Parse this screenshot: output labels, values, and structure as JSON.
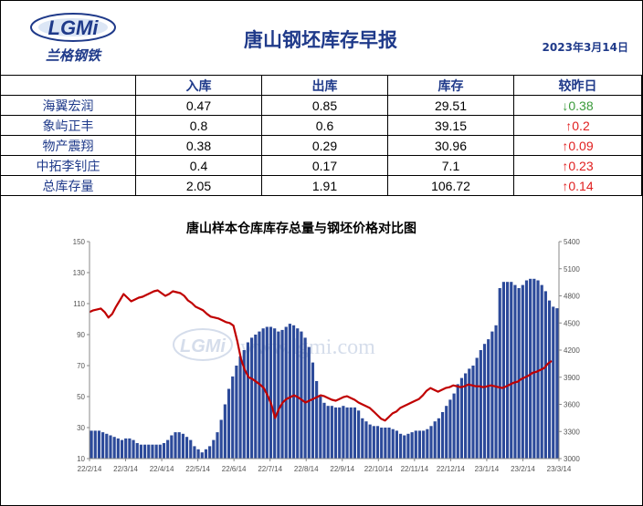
{
  "header": {
    "logo_text": "LGMi",
    "logo_subtitle": "兰格钢铁",
    "title": "唐山钢坯库存早报",
    "date": "2023年3月14日"
  },
  "table": {
    "columns": [
      "",
      "入库",
      "出库",
      "库存",
      "较昨日"
    ],
    "rows": [
      {
        "name": "海翼宏润",
        "in": "0.47",
        "out": "0.85",
        "stock": "29.51",
        "change": "↓0.38",
        "dir": "down"
      },
      {
        "name": "象屿正丰",
        "in": "0.8",
        "out": "0.6",
        "stock": "39.15",
        "change": "↑0.2",
        "dir": "up"
      },
      {
        "name": "物产震翔",
        "in": "0.38",
        "out": "0.29",
        "stock": "30.96",
        "change": "↑0.09",
        "dir": "up"
      },
      {
        "name": "中拓李钊庄",
        "in": "0.4",
        "out": "0.17",
        "stock": "7.1",
        "change": "↑0.23",
        "dir": "up"
      },
      {
        "name": "总库存量",
        "in": "2.05",
        "out": "1.91",
        "stock": "106.72",
        "change": "↑0.14",
        "dir": "up"
      }
    ]
  },
  "colors": {
    "brand": "#1f3a8a",
    "bars": "#2c4a9a",
    "line": "#c00000",
    "up": "#e01e1e",
    "down": "#3a9a3a"
  },
  "chart_data": {
    "type": "bar",
    "title": "唐山样本仓库库存总量与钢坯价格对比图",
    "watermark": "www.lgmi.com",
    "x_ticks": [
      "22/2/14",
      "22/3/14",
      "22/4/14",
      "22/5/14",
      "22/6/14",
      "22/7/14",
      "22/8/14",
      "22/9/14",
      "22/10/14",
      "22/11/14",
      "22/12/14",
      "23/1/14",
      "23/2/14",
      "23/3/14"
    ],
    "y_left": {
      "min": 10,
      "max": 150,
      "ticks": [
        10,
        30,
        50,
        70,
        90,
        110,
        130,
        150
      ]
    },
    "y_right": {
      "min": 3000,
      "max": 5400,
      "ticks": [
        3000,
        3300,
        3600,
        3900,
        4200,
        4500,
        4800,
        5100,
        5400
      ]
    },
    "series": [
      {
        "kind": "bar",
        "axis": "left",
        "values": [
          28,
          28,
          28,
          27,
          26,
          25,
          24,
          23,
          22,
          23,
          23,
          22,
          20,
          19,
          19,
          19,
          19,
          19,
          19,
          20,
          22,
          25,
          27,
          27,
          26,
          24,
          22,
          18,
          16,
          14,
          16,
          18,
          22,
          27,
          35,
          45,
          55,
          63,
          70,
          76,
          80,
          85,
          88,
          90,
          92,
          94,
          95,
          95,
          94,
          92,
          93,
          95,
          97,
          96,
          94,
          92,
          88,
          82,
          72,
          60,
          50,
          46,
          44,
          44,
          43,
          43,
          44,
          43,
          43,
          43,
          41,
          36,
          34,
          32,
          31,
          31,
          30,
          30,
          30,
          29,
          28,
          26,
          25,
          26,
          27,
          28,
          28,
          28,
          29,
          31,
          34,
          36,
          40,
          44,
          48,
          52,
          58,
          62,
          65,
          68,
          70,
          75,
          80,
          84,
          87,
          92,
          96,
          120,
          124,
          124,
          124,
          122,
          120,
          122,
          125,
          126,
          126,
          125,
          122,
          118,
          112,
          108,
          107
        ]
      },
      {
        "kind": "line",
        "axis": "right",
        "values": [
          4620,
          4640,
          4650,
          4660,
          4620,
          4560,
          4600,
          4680,
          4750,
          4820,
          4780,
          4740,
          4760,
          4780,
          4790,
          4810,
          4830,
          4850,
          4860,
          4830,
          4800,
          4820,
          4850,
          4840,
          4830,
          4800,
          4750,
          4720,
          4680,
          4660,
          4640,
          4600,
          4570,
          4560,
          4550,
          4530,
          4510,
          4500,
          4470,
          4300,
          4100,
          3980,
          3900,
          3880,
          3850,
          3820,
          3780,
          3700,
          3600,
          3450,
          3550,
          3620,
          3660,
          3680,
          3700,
          3680,
          3650,
          3620,
          3640,
          3660,
          3680,
          3700,
          3690,
          3670,
          3650,
          3640,
          3660,
          3680,
          3690,
          3670,
          3650,
          3620,
          3600,
          3580,
          3560,
          3520,
          3480,
          3440,
          3420,
          3460,
          3500,
          3520,
          3560,
          3580,
          3600,
          3620,
          3640,
          3660,
          3700,
          3750,
          3780,
          3760,
          3740,
          3760,
          3780,
          3790,
          3810,
          3800,
          3790,
          3800,
          3820,
          3810,
          3800,
          3800,
          3790,
          3800,
          3810,
          3800,
          3790,
          3780,
          3800,
          3820,
          3840,
          3850,
          3880,
          3900,
          3920,
          3950,
          3960,
          3980,
          4000,
          4050,
          4080
        ]
      }
    ]
  }
}
